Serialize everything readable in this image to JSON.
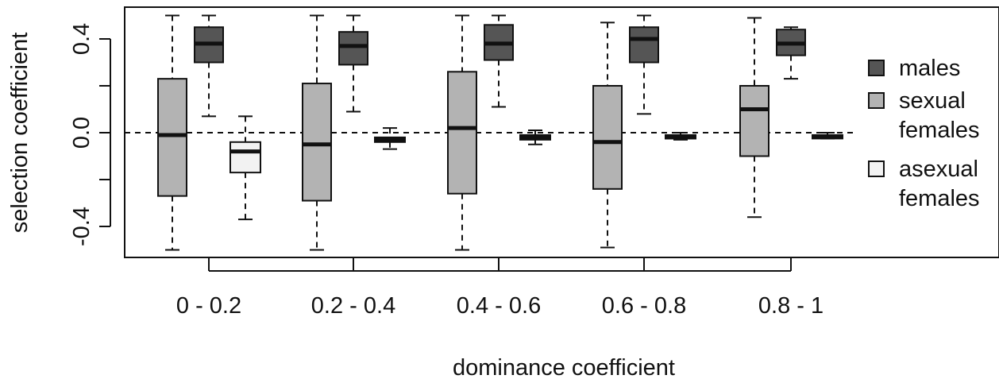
{
  "chart_data": {
    "type": "boxplot",
    "xlabel": "dominance coefficient",
    "ylabel": "selection coefficient",
    "categories": [
      "0 - 0.2",
      "0.2 - 0.4",
      "0.4 - 0.6",
      "0.6 - 0.8",
      "0.8 - 1"
    ],
    "ylim": [
      -0.54,
      0.54
    ],
    "yticks": [
      -0.4,
      -0.2,
      0.0,
      0.2,
      0.4
    ],
    "ytick_labels": [
      "-0.4",
      "",
      "0.0",
      "",
      "0.4"
    ],
    "reference_line": 0.0,
    "legend_placement": "right",
    "series": [
      {
        "name": "sexual females",
        "legend_lines": [
          "sexual",
          "females"
        ],
        "color": "#b3b3b3",
        "boxes": [
          {
            "whisker_low": -0.5,
            "q1": -0.27,
            "median": -0.01,
            "q3": 0.23,
            "whisker_high": 0.5
          },
          {
            "whisker_low": -0.5,
            "q1": -0.29,
            "median": -0.05,
            "q3": 0.21,
            "whisker_high": 0.5
          },
          {
            "whisker_low": -0.5,
            "q1": -0.26,
            "median": 0.02,
            "q3": 0.26,
            "whisker_high": 0.5
          },
          {
            "whisker_low": -0.49,
            "q1": -0.24,
            "median": -0.04,
            "q3": 0.2,
            "whisker_high": 0.47
          },
          {
            "whisker_low": -0.36,
            "q1": -0.1,
            "median": 0.1,
            "q3": 0.2,
            "whisker_high": 0.49
          }
        ]
      },
      {
        "name": "males",
        "legend_lines": [
          "males"
        ],
        "color": "#555555",
        "boxes": [
          {
            "whisker_low": 0.07,
            "q1": 0.3,
            "median": 0.38,
            "q3": 0.45,
            "whisker_high": 0.5
          },
          {
            "whisker_low": 0.09,
            "q1": 0.29,
            "median": 0.37,
            "q3": 0.43,
            "whisker_high": 0.5
          },
          {
            "whisker_low": 0.11,
            "q1": 0.31,
            "median": 0.38,
            "q3": 0.46,
            "whisker_high": 0.5
          },
          {
            "whisker_low": 0.08,
            "q1": 0.3,
            "median": 0.4,
            "q3": 0.45,
            "whisker_high": 0.5
          },
          {
            "whisker_low": 0.23,
            "q1": 0.33,
            "median": 0.38,
            "q3": 0.44,
            "whisker_high": 0.45
          }
        ]
      },
      {
        "name": "asexual females",
        "legend_lines": [
          "asexual",
          "females"
        ],
        "color": "#f2f2f2",
        "boxes": [
          {
            "whisker_low": -0.37,
            "q1": -0.17,
            "median": -0.08,
            "q3": -0.04,
            "whisker_high": 0.07
          },
          {
            "whisker_low": -0.07,
            "q1": -0.04,
            "median": -0.03,
            "q3": -0.02,
            "whisker_high": 0.02
          },
          {
            "whisker_low": -0.05,
            "q1": -0.03,
            "median": -0.02,
            "q3": -0.01,
            "whisker_high": 0.01
          },
          {
            "whisker_low": -0.03,
            "q1": -0.025,
            "median": -0.02,
            "q3": -0.01,
            "whisker_high": 0.0
          },
          {
            "whisker_low": -0.025,
            "q1": -0.02,
            "median": -0.02,
            "q3": -0.01,
            "whisker_high": 0.0
          }
        ]
      }
    ],
    "legend_order": [
      "males",
      "sexual females",
      "asexual females"
    ]
  }
}
